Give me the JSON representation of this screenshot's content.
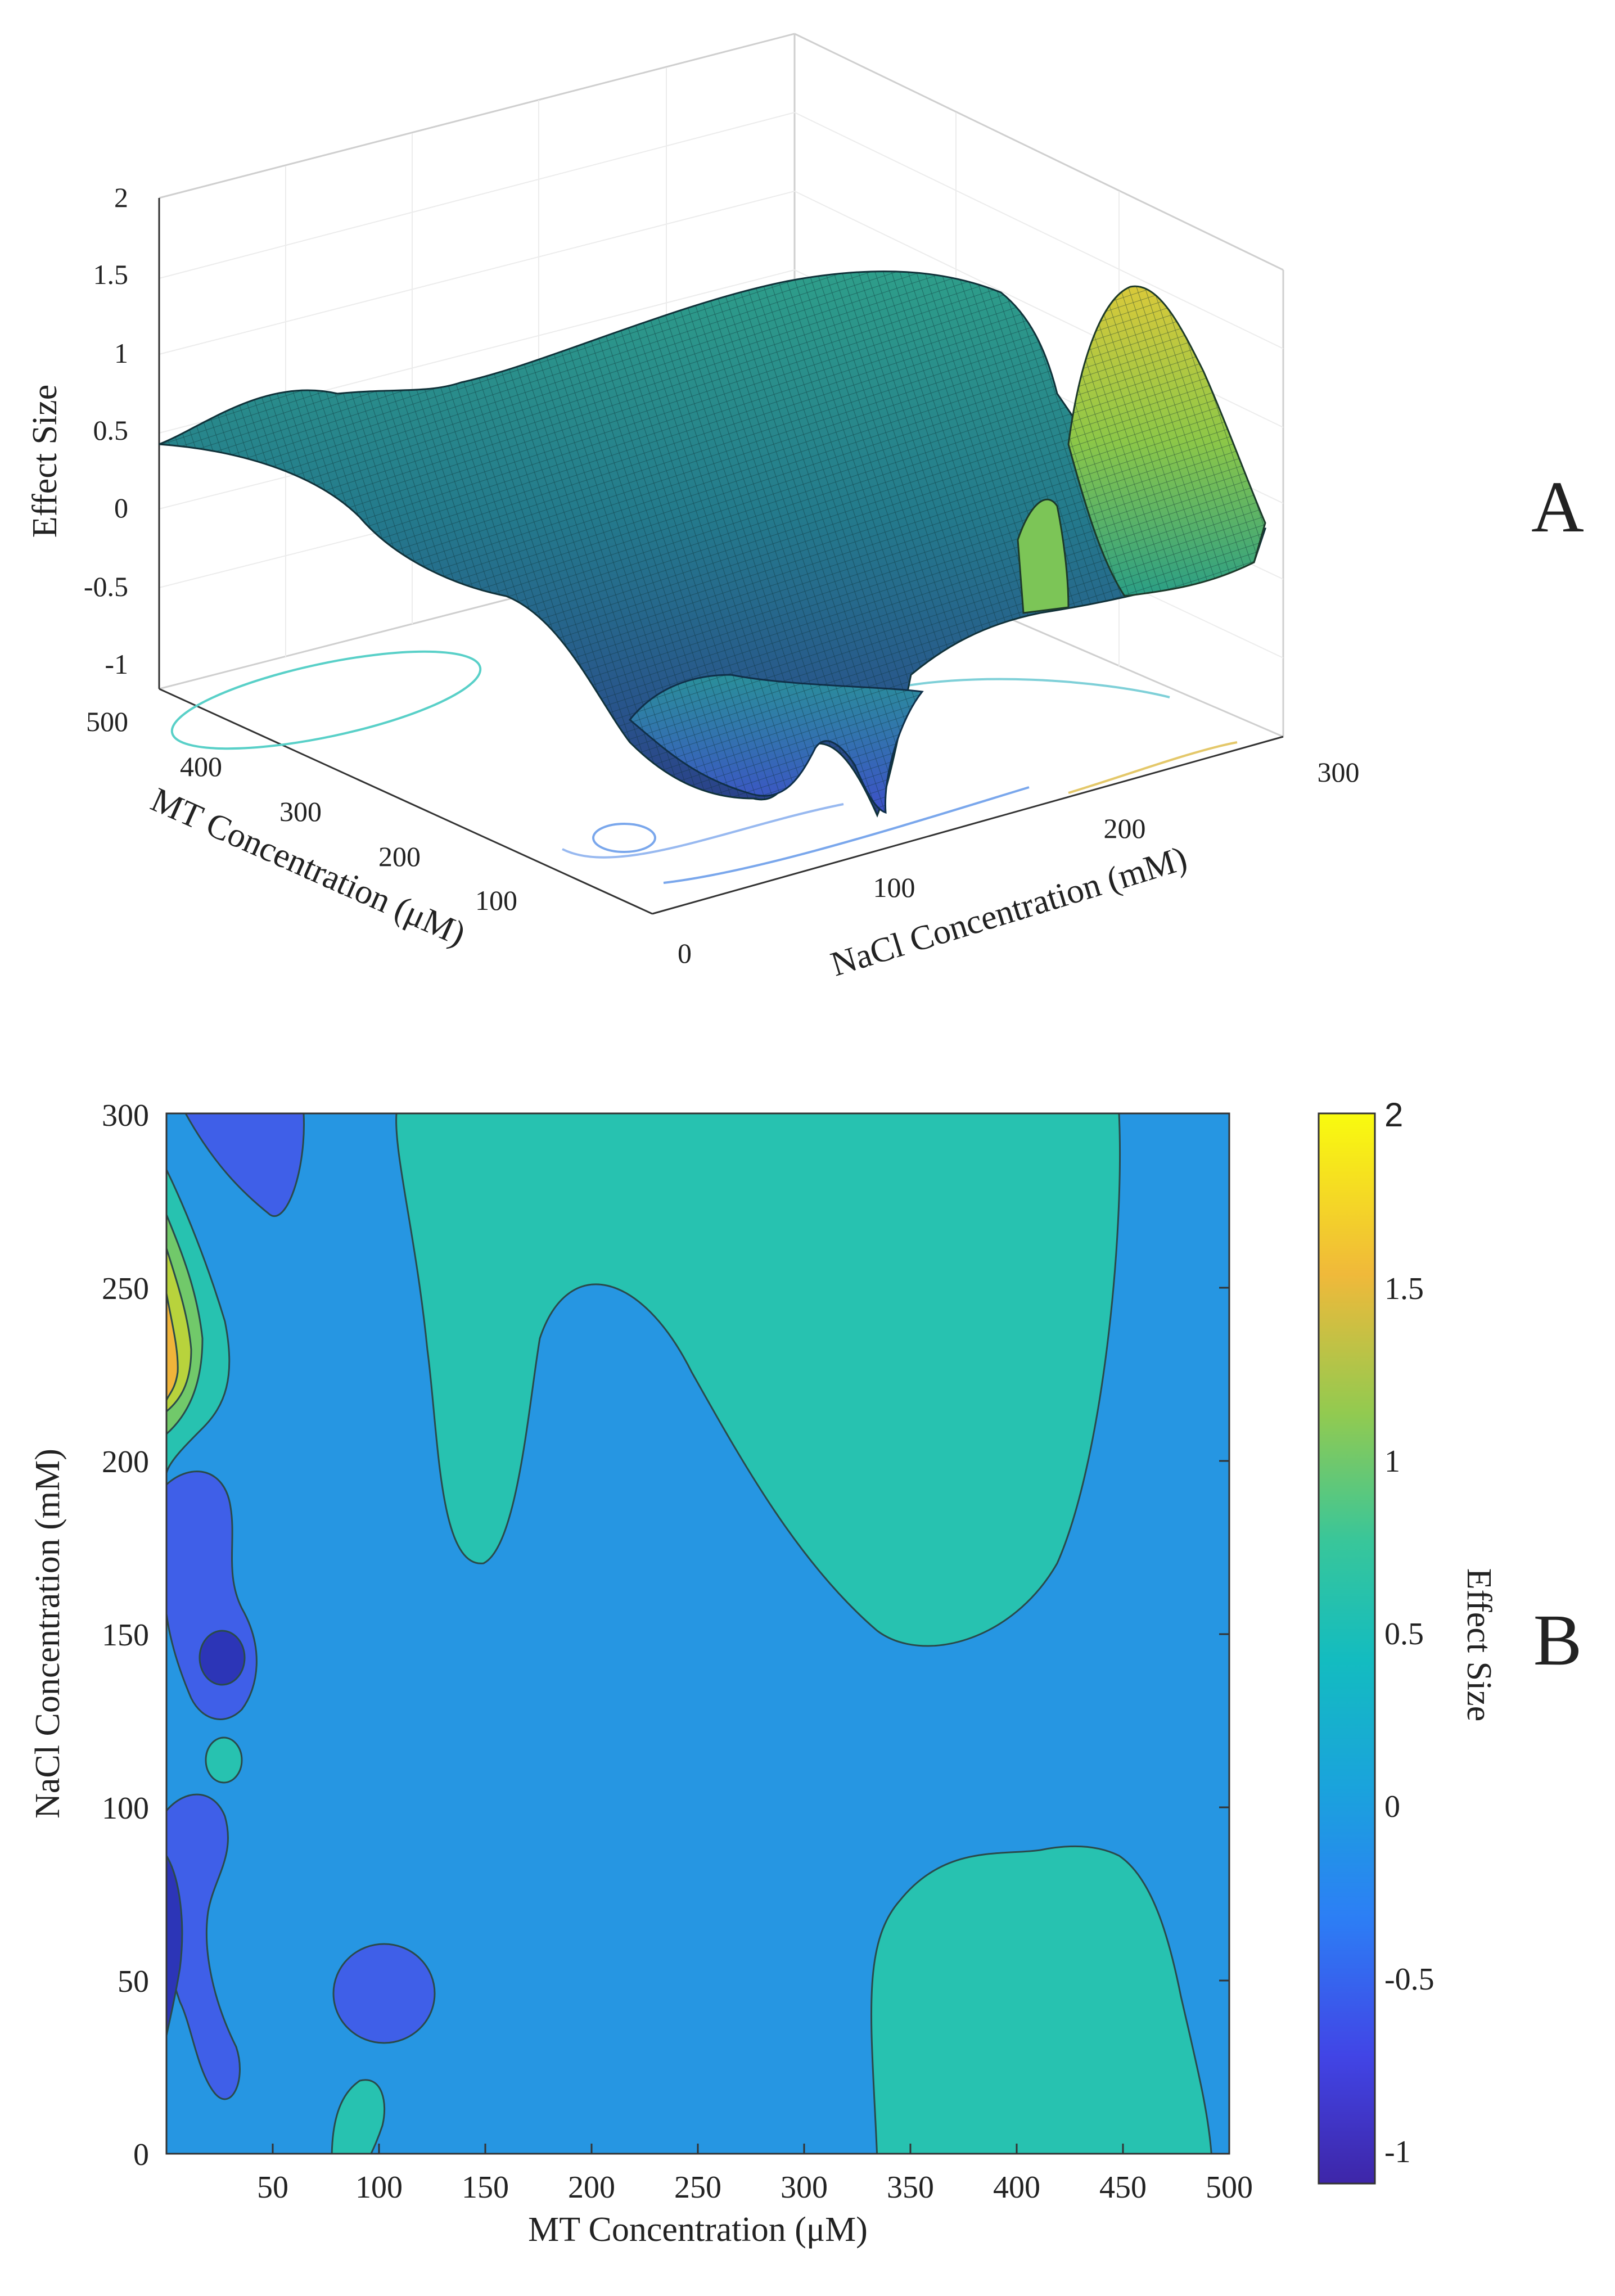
{
  "chart_data": [
    {
      "type": "surface",
      "panel_label": "A",
      "zlabel": "Effect Size",
      "xlabel": "NaCl Concentration (mM)",
      "ylabel": "MT Concentration (μM)",
      "z_ticks": [
        "2",
        "1.5",
        "1",
        "0.5",
        "0",
        "-0.5",
        "-1"
      ],
      "x_ticks": [
        "100",
        "200",
        "300"
      ],
      "y_ticks": [
        "500",
        "400",
        "300",
        "200",
        "100",
        "0"
      ],
      "zlim": [
        -1,
        2
      ],
      "xlim": [
        0,
        300
      ],
      "ylim": [
        0,
        500
      ],
      "notes": "3D mesh surface of effect size over NaCl and MT concentration with contour projection on the floor"
    },
    {
      "type": "contourf",
      "panel_label": "B",
      "xlabel": "MT Concentration (μM)",
      "ylabel": "NaCl Concentration (mM)",
      "colorbar_label": "Effect Size",
      "x_ticks": [
        "50",
        "100",
        "150",
        "200",
        "250",
        "300",
        "350",
        "400",
        "450",
        "500"
      ],
      "y_ticks": [
        "0",
        "50",
        "100",
        "150",
        "200",
        "250",
        "300"
      ],
      "colorbar_ticks": [
        "2",
        "1.5",
        "1",
        "0.5",
        "0",
        "-0.5",
        "-1"
      ],
      "xlim": [
        0,
        500
      ],
      "ylim": [
        0,
        300
      ],
      "clim": [
        -1.1,
        2
      ],
      "levels": [
        -1,
        -0.5,
        0,
        0.5,
        1,
        1.5
      ],
      "colors": {
        "background": "#2696e2",
        "positive_region": "#27c2b0",
        "negative_region": "#3f5fe8",
        "strong_negative": "#2c35b7",
        "high": "#b8d33c",
        "peak": "#f0b43a",
        "green": "#71c96a"
      }
    }
  ]
}
